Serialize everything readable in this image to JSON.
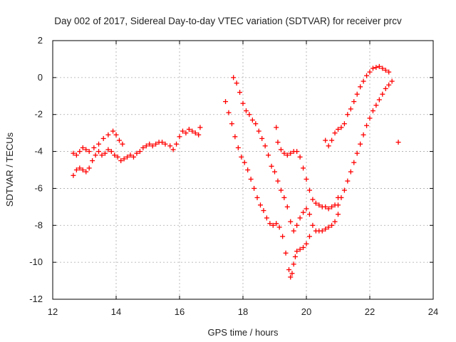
{
  "chart_data": {
    "type": "scatter",
    "title": "Day 002 of 2017, Sidereal Day-to-day VTEC variation (SDTVAR) for receiver prcv",
    "xlabel": "GPS time / hours",
    "ylabel": "SDTVAR / TECUs",
    "xlim": [
      12,
      24
    ],
    "ylim": [
      -12,
      2
    ],
    "xticks": [
      "12",
      "14",
      "16",
      "18",
      "20",
      "22",
      "24"
    ],
    "yticks": [
      "2",
      "0",
      "-2",
      "-4",
      "-6",
      "-8",
      "-10",
      "-12"
    ],
    "grid": true,
    "legend": "none",
    "marker": "plus",
    "color": "#ff0000",
    "series": [
      {
        "x": [
          12.65,
          12.75,
          12.85,
          12.95,
          13.05,
          13.15,
          13.3,
          13.45,
          13.6,
          13.75,
          13.9,
          14.0,
          14.1,
          14.2
        ],
        "y": [
          -4.1,
          -4.2,
          -4.0,
          -3.8,
          -3.9,
          -4.0,
          -3.8,
          -3.6,
          -3.3,
          -3.1,
          -2.9,
          -3.1,
          -3.4,
          -3.6
        ]
      },
      {
        "x": [
          12.65,
          12.75,
          12.85,
          12.95,
          13.05,
          13.15,
          13.25,
          13.35,
          13.45,
          13.55,
          13.65,
          13.75,
          13.85,
          13.95,
          14.05,
          14.15,
          14.25,
          14.35,
          14.45,
          14.55,
          14.65,
          14.75,
          14.85,
          14.95,
          15.05,
          15.15,
          15.25,
          15.35,
          15.45,
          15.55
        ],
        "y": [
          -5.3,
          -5.0,
          -4.9,
          -5.0,
          -5.1,
          -4.9,
          -4.5,
          -4.2,
          -4.0,
          -4.2,
          -4.1,
          -3.9,
          -4.0,
          -4.2,
          -4.3,
          -4.5,
          -4.4,
          -4.3,
          -4.2,
          -4.3,
          -4.1,
          -4.0,
          -3.8,
          -3.7,
          -3.6,
          -3.7,
          -3.6,
          -3.5,
          -3.5,
          -3.6
        ]
      },
      {
        "x": [
          15.7,
          15.8,
          15.9,
          16.0,
          16.1,
          16.2,
          16.3,
          16.4,
          16.5,
          16.6,
          16.65
        ],
        "y": [
          -3.7,
          -3.9,
          -3.6,
          -3.2,
          -2.9,
          -3.0,
          -2.8,
          -2.9,
          -3.0,
          -3.1,
          -2.7
        ]
      },
      {
        "x": [
          17.45,
          17.55,
          17.65,
          17.75,
          17.85,
          17.95,
          18.05,
          18.15,
          18.25,
          18.35,
          18.45,
          18.55,
          18.65,
          18.75,
          18.85,
          18.95,
          19.05,
          19.15,
          19.25,
          19.35,
          19.45,
          19.5,
          19.55,
          19.6,
          19.65,
          19.7,
          19.8,
          19.9,
          20.0,
          20.1
        ],
        "y": [
          -1.3,
          -1.9,
          -2.5,
          -3.2,
          -3.8,
          -4.3,
          -4.6,
          -5.0,
          -5.5,
          -6.0,
          -6.5,
          -6.9,
          -7.2,
          -7.6,
          -7.9,
          -8.0,
          -7.9,
          -8.1,
          -8.6,
          -9.5,
          -10.4,
          -10.8,
          -10.6,
          -10.1,
          -9.7,
          -9.4,
          -9.3,
          -9.2,
          -9.0,
          -8.6
        ]
      },
      {
        "x": [
          17.7,
          17.8,
          17.9,
          18.0,
          18.1,
          18.2,
          18.3,
          18.4,
          18.5,
          18.6,
          18.7,
          18.8,
          18.9,
          19.0,
          19.1,
          19.2,
          19.3,
          19.4,
          19.5,
          19.6,
          19.7,
          19.8,
          19.9,
          20.0,
          20.1,
          20.2,
          20.3,
          20.4,
          20.5,
          20.6,
          20.7,
          20.8,
          20.9,
          21.0
        ],
        "y": [
          0.0,
          -0.3,
          -0.8,
          -1.4,
          -1.8,
          -2.0,
          -2.3,
          -2.5,
          -2.9,
          -3.3,
          -3.7,
          -4.2,
          -4.8,
          -5.1,
          -5.6,
          -6.1,
          -6.5,
          -7.0,
          -7.8,
          -8.3,
          -8.0,
          -7.6,
          -7.3,
          -7.1,
          -7.4,
          -8.0,
          -8.3,
          -8.3,
          -8.3,
          -8.2,
          -8.1,
          -8.0,
          -7.8,
          -7.4
        ]
      },
      {
        "x": [
          19.05,
          19.1,
          19.2,
          19.3,
          19.4,
          19.5,
          19.6,
          19.7,
          19.8,
          19.9,
          20.0,
          20.1,
          20.2,
          20.3,
          20.4,
          20.5,
          20.6,
          20.7,
          20.8,
          20.9,
          21.0
        ],
        "y": [
          -2.7,
          -3.5,
          -3.9,
          -4.1,
          -4.2,
          -4.1,
          -4.0,
          -4.0,
          -4.3,
          -4.9,
          -5.5,
          -6.1,
          -6.6,
          -6.8,
          -6.9,
          -7.0,
          -7.0,
          -7.1,
          -7.0,
          -6.9,
          -6.5
        ]
      },
      {
        "x": [
          20.6,
          20.7,
          20.8,
          20.9,
          21.0,
          21.1,
          21.2,
          21.3,
          21.4,
          21.5,
          21.6,
          21.7,
          21.8,
          21.9,
          22.0,
          22.1,
          22.2,
          22.3,
          22.4,
          22.5,
          22.6
        ],
        "y": [
          -3.4,
          -3.7,
          -3.4,
          -3.0,
          -2.8,
          -2.7,
          -2.5,
          -2.0,
          -1.7,
          -1.3,
          -0.9,
          -0.5,
          -0.2,
          0.1,
          0.3,
          0.5,
          0.55,
          0.6,
          0.5,
          0.4,
          0.3
        ]
      },
      {
        "x": [
          21.0,
          21.1,
          21.2,
          21.3,
          21.4,
          21.5,
          21.6,
          21.7,
          21.8,
          21.9,
          22.0,
          22.1,
          22.2,
          22.3,
          22.4,
          22.5,
          22.6,
          22.7
        ],
        "y": [
          -6.9,
          -6.5,
          -6.1,
          -5.6,
          -5.1,
          -4.6,
          -4.1,
          -3.6,
          -3.1,
          -2.6,
          -2.2,
          -1.8,
          -1.5,
          -1.2,
          -0.9,
          -0.6,
          -0.4,
          -0.2
        ]
      },
      {
        "x": [
          22.9
        ],
        "y": [
          -3.5
        ]
      }
    ]
  }
}
